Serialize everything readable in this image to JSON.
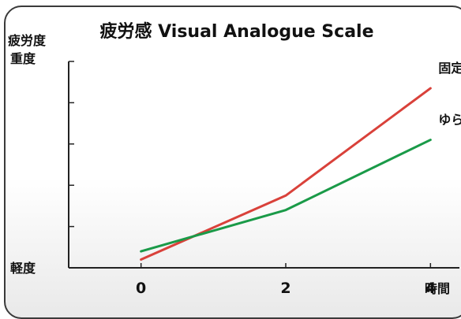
{
  "chart_data": {
    "type": "line",
    "title": "疲労感 Visual Analogue Scale",
    "ylabel": "疲労度",
    "xlabel": "時間",
    "y_top_label": "重度",
    "y_bottom_label": "軽度",
    "x": [
      0,
      2,
      4
    ],
    "x_tick_labels": [
      "0",
      "2",
      "4"
    ],
    "xlim": [
      -1,
      4.4
    ],
    "ylim": [
      0,
      100
    ],
    "grid": false,
    "legend": "right, at line ends",
    "series": [
      {
        "name": "固定",
        "color": "#d9413a",
        "values": [
          4,
          35,
          87
        ]
      },
      {
        "name": "ゆらぎ",
        "color": "#1a9a48",
        "values": [
          8,
          28,
          62
        ]
      }
    ]
  }
}
